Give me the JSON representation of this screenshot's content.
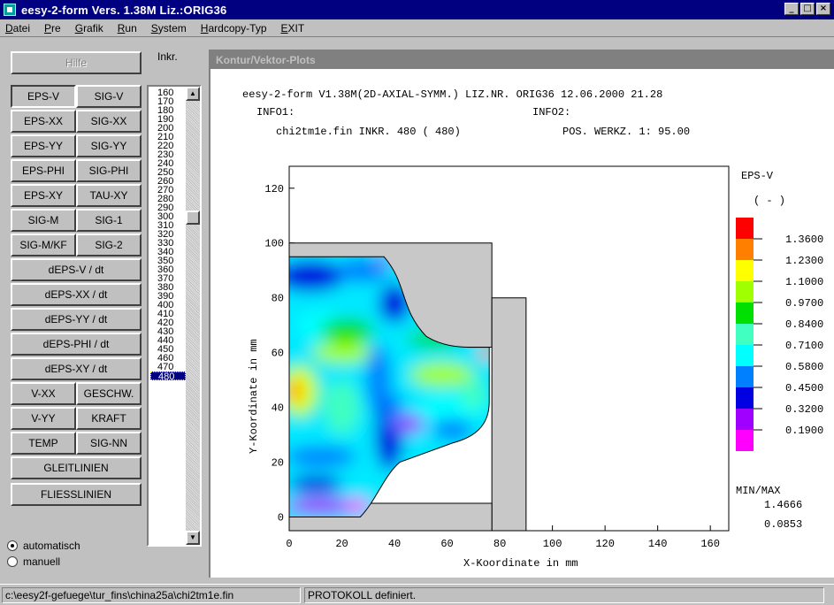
{
  "window": {
    "title": "eesy-2-form Vers. 1.38M    Liz.:ORIG36",
    "controls": [
      "minimize-icon",
      "maximize-icon",
      "close-icon"
    ]
  },
  "menu": [
    "Datei",
    "Pre",
    "Grafik",
    "Run",
    "System",
    "Hardcopy-Typ",
    "EXIT"
  ],
  "left": {
    "hilfe": "Hilfe",
    "inkr_label": "Inkr.",
    "buttons_pairs": [
      [
        "EPS-V",
        "SIG-V"
      ],
      [
        "EPS-XX",
        "SIG-XX"
      ],
      [
        "EPS-YY",
        "SIG-YY"
      ],
      [
        "EPS-PHI",
        "SIG-PHI"
      ],
      [
        "EPS-XY",
        "TAU-XY"
      ],
      [
        "SIG-M",
        "SIG-1"
      ],
      [
        "SIG-M/KF",
        "SIG-2"
      ]
    ],
    "buttons_wide": [
      "dEPS-V / dt",
      "dEPS-XX / dt",
      "dEPS-YY / dt",
      "dEPS-PHI / dt",
      "dEPS-XY / dt"
    ],
    "buttons_pairs2": [
      [
        "V-XX",
        "GESCHW."
      ],
      [
        "V-YY",
        "KRAFT"
      ],
      [
        "TEMP",
        "SIG-NN"
      ]
    ],
    "buttons_bottom": [
      "GLEITLINIEN",
      "FLIESSLINIEN"
    ],
    "increments": [
      "160",
      "170",
      "180",
      "190",
      "200",
      "210",
      "220",
      "230",
      "240",
      "250",
      "260",
      "270",
      "280",
      "290",
      "300",
      "310",
      "320",
      "330",
      "340",
      "350",
      "360",
      "370",
      "380",
      "390",
      "400",
      "410",
      "420",
      "430",
      "440",
      "450",
      "460",
      "470",
      "480"
    ],
    "selected_increment": "480",
    "radio_auto": "automatisch",
    "radio_manual": "manuell",
    "radio_selected": "automatisch"
  },
  "plot": {
    "window_title": "Kontur/Vektor-Plots",
    "header_line1": "eesy-2-form V1.38M(2D-AXIAL-SYMM.)   LIZ.NR. ORIG36    12.06.2000  21.28",
    "info01": "INFO1:",
    "info02": "INFO2:",
    "header_line3_left": "chi2tm1e.fin   INKR.  480 ( 480)",
    "header_line3_right": "POS. WERKZ. 1:    95.00"
  },
  "chart_data": {
    "type": "heatmap",
    "xlabel": "X-Koordinate in mm",
    "ylabel": "Y-Koordinate in mm",
    "x_ticks": [
      0,
      20,
      40,
      60,
      80,
      100,
      120,
      140,
      160
    ],
    "y_ticks": [
      0,
      20,
      40,
      60,
      80,
      100,
      120
    ],
    "xlim": [
      0,
      167
    ],
    "ylim": [
      -5,
      128
    ],
    "legend_title": "EPS-V",
    "legend_unit": "(  -  )",
    "legend_values": [
      "1.3600",
      "1.2300",
      "1.1000",
      "0.9700",
      "0.8400",
      "0.7100",
      "0.5800",
      "0.4500",
      "0.3200",
      "0.1900"
    ],
    "legend_colors": [
      "#ff0000",
      "#ff8000",
      "#ffff00",
      "#a0ff00",
      "#00e000",
      "#40ffc0",
      "#00ffff",
      "#0080ff",
      "#0000e0",
      "#a000ff",
      "#ff00ff"
    ],
    "minmax_label": "MIN/MAX",
    "max_value": "1.4666",
    "min_value": "0.0853"
  },
  "status": {
    "path": "c:\\eesy2f-gefuege\\tur_fins\\china25a\\chi2tm1e.fin",
    "message": "PROTOKOLL definiert."
  }
}
